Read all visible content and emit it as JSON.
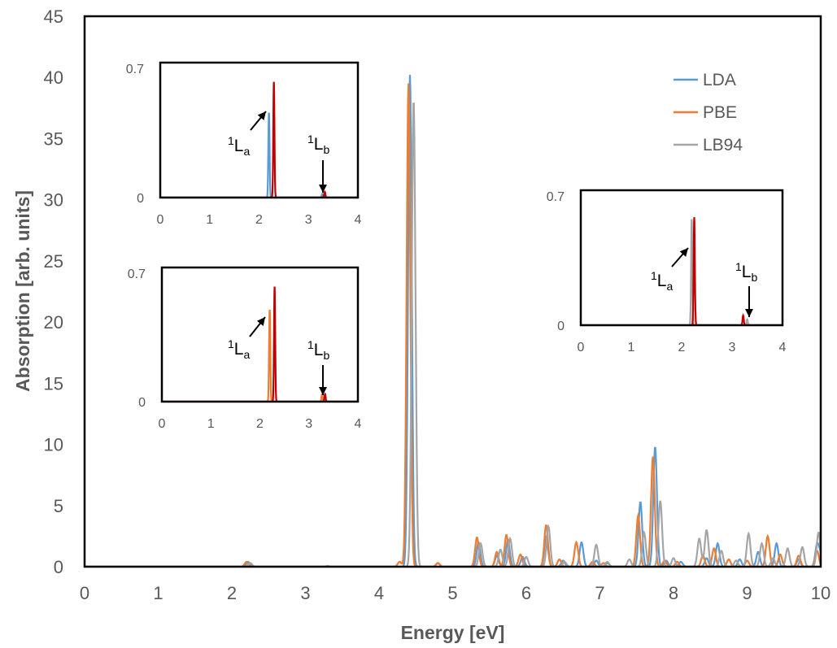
{
  "chart_data": {
    "type": "line",
    "title": "",
    "xlabel": "Energy [eV]",
    "ylabel": "Absorption [arb. units]",
    "xlim": [
      0,
      10
    ],
    "ylim": [
      0,
      45
    ],
    "xticks": [
      0,
      1,
      2,
      3,
      4,
      5,
      6,
      7,
      8,
      9,
      10
    ],
    "yticks": [
      0,
      5,
      10,
      15,
      20,
      25,
      30,
      35,
      40,
      45
    ],
    "grid": false,
    "legend": {
      "placement": "top-right",
      "entries": [
        {
          "label": "LDA",
          "color": "#5B9BD5"
        },
        {
          "label": "PBE",
          "color": "#ED7D31"
        },
        {
          "label": "LB94",
          "color": "#A5A5A5"
        }
      ]
    },
    "series": [
      {
        "name": "LDA",
        "color": "#5B9BD5",
        "peaks": [
          [
            2.22,
            0.4
          ],
          [
            3.3,
            0.05
          ],
          [
            4.42,
            40.2
          ],
          [
            4.8,
            0.3
          ],
          [
            5.35,
            2.0
          ],
          [
            5.6,
            0.9
          ],
          [
            5.75,
            2.2
          ],
          [
            5.95,
            0.8
          ],
          [
            6.27,
            2.5
          ],
          [
            6.5,
            0.5
          ],
          [
            6.75,
            2.0
          ],
          [
            6.95,
            0.5
          ],
          [
            7.1,
            0.3
          ],
          [
            7.55,
            5.3
          ],
          [
            7.75,
            9.8
          ],
          [
            7.9,
            0.5
          ],
          [
            8.1,
            0.4
          ],
          [
            8.45,
            0.7
          ],
          [
            8.6,
            1.9
          ],
          [
            8.9,
            0.6
          ],
          [
            9.15,
            1.2
          ],
          [
            9.4,
            1.9
          ],
          [
            9.7,
            0.6
          ],
          [
            9.95,
            1.8
          ],
          [
            10.0,
            1.0
          ]
        ]
      },
      {
        "name": "PBE",
        "color": "#ED7D31",
        "peaks": [
          [
            2.2,
            0.4
          ],
          [
            4.28,
            0.4
          ],
          [
            4.4,
            39.5
          ],
          [
            4.8,
            0.3
          ],
          [
            5.33,
            2.4
          ],
          [
            5.6,
            1.2
          ],
          [
            5.73,
            2.6
          ],
          [
            5.92,
            1.0
          ],
          [
            6.27,
            3.4
          ],
          [
            6.45,
            0.6
          ],
          [
            6.68,
            2.0
          ],
          [
            6.9,
            0.4
          ],
          [
            7.05,
            0.3
          ],
          [
            7.52,
            4.2
          ],
          [
            7.72,
            9.0
          ],
          [
            7.88,
            0.5
          ],
          [
            8.05,
            0.4
          ],
          [
            8.4,
            0.9
          ],
          [
            8.55,
            1.5
          ],
          [
            8.75,
            0.6
          ],
          [
            9.0,
            0.5
          ],
          [
            9.28,
            2.5
          ],
          [
            9.45,
            1.0
          ],
          [
            9.7,
            0.9
          ],
          [
            9.95,
            1.3
          ]
        ]
      },
      {
        "name": "LB94",
        "color": "#A5A5A5",
        "peaks": [
          [
            2.25,
            0.3
          ],
          [
            4.47,
            38.2
          ],
          [
            5.38,
            1.9
          ],
          [
            5.65,
            1.4
          ],
          [
            5.78,
            2.3
          ],
          [
            6.0,
            0.8
          ],
          [
            6.3,
            3.3
          ],
          [
            6.52,
            0.4
          ],
          [
            6.95,
            1.8
          ],
          [
            7.1,
            0.4
          ],
          [
            7.4,
            0.6
          ],
          [
            7.6,
            2.8
          ],
          [
            7.82,
            5.4
          ],
          [
            8.0,
            0.7
          ],
          [
            8.35,
            2.3
          ],
          [
            8.45,
            3.0
          ],
          [
            8.65,
            1.3
          ],
          [
            8.85,
            0.5
          ],
          [
            9.02,
            2.7
          ],
          [
            9.2,
            1.9
          ],
          [
            9.35,
            0.7
          ],
          [
            9.55,
            1.5
          ],
          [
            9.75,
            1.6
          ],
          [
            9.97,
            2.8
          ]
        ]
      }
    ],
    "insets": [
      {
        "xlim": [
          0,
          4
        ],
        "xticks": [
          0,
          1,
          2,
          3,
          4
        ],
        "ytick_labels": [
          "0",
          "0.7"
        ],
        "lines": [
          {
            "color": "#5B9BD5",
            "peaks": [
              [
                2.2,
                0.44
              ],
              [
                3.28,
                0.02
              ]
            ]
          },
          {
            "color": "#C00000",
            "peaks": [
              [
                2.3,
                0.6
              ],
              [
                3.33,
                0.03
              ]
            ]
          }
        ],
        "annotations": [
          {
            "sup": "1",
            "main": "L",
            "sub": "a"
          },
          {
            "sup": "1",
            "main": "L",
            "sub": "b"
          }
        ]
      },
      {
        "xlim": [
          0,
          4
        ],
        "xticks": [
          0,
          1,
          2,
          3,
          4
        ],
        "ytick_labels": [
          "0",
          "0.7"
        ],
        "lines": [
          {
            "color": "#ED7D31",
            "peaks": [
              [
                2.2,
                0.48
              ],
              [
                3.27,
                0.04
              ]
            ]
          },
          {
            "color": "#C00000",
            "peaks": [
              [
                2.3,
                0.6
              ],
              [
                3.33,
                0.04
              ]
            ]
          }
        ],
        "annotations": [
          {
            "sup": "1",
            "main": "L",
            "sub": "a"
          },
          {
            "sup": "1",
            "main": "L",
            "sub": "b"
          }
        ]
      },
      {
        "xlim": [
          0,
          4
        ],
        "xticks": [
          0,
          1,
          2,
          3,
          4
        ],
        "ytick_labels": [
          "0",
          "0.7"
        ],
        "lines": [
          {
            "color": "#A5A5A5",
            "peaks": [
              [
                2.2,
                0.55
              ],
              [
                3.3,
                0.03
              ]
            ]
          },
          {
            "color": "#C00000",
            "peaks": [
              [
                2.25,
                0.56
              ],
              [
                3.22,
                0.05
              ]
            ]
          }
        ],
        "annotations": [
          {
            "sup": "1",
            "main": "L",
            "sub": "a"
          },
          {
            "sup": "1",
            "main": "L",
            "sub": "b"
          }
        ]
      }
    ]
  }
}
